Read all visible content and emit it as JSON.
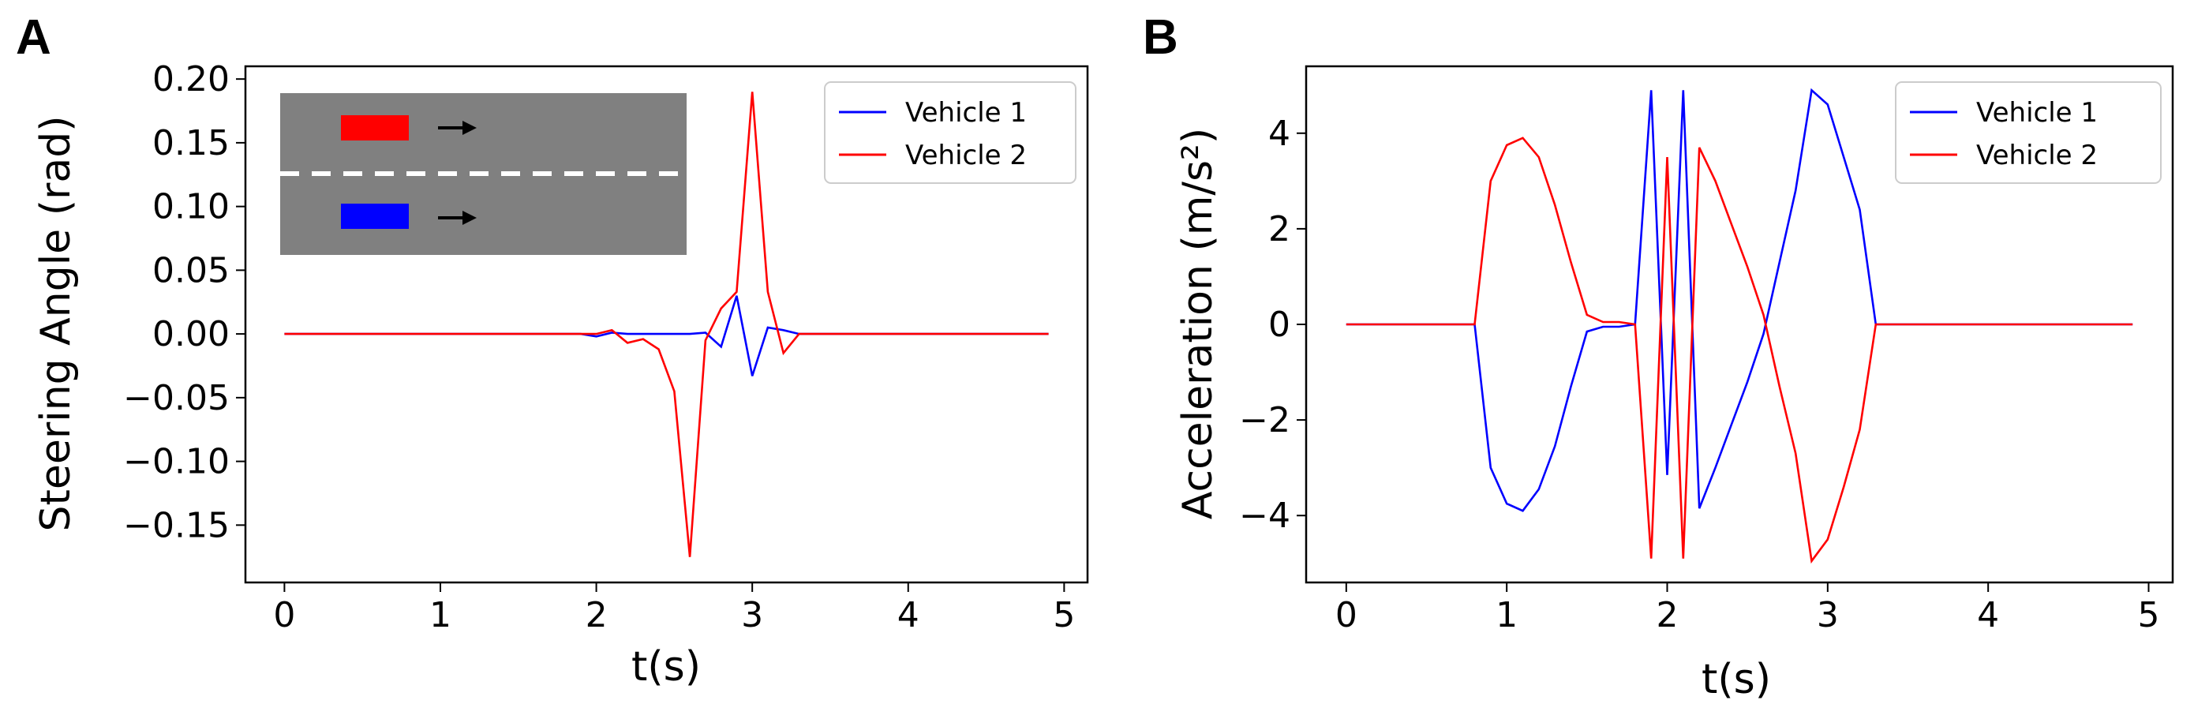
{
  "chart_data": [
    {
      "panel": "A",
      "type": "line",
      "xlabel": "t(s)",
      "ylabel": "Steering Angle (rad)",
      "xlim": [
        -0.25,
        5.15
      ],
      "ylim": [
        -0.195,
        0.21
      ],
      "xticks": [
        "0",
        "1",
        "2",
        "3",
        "4",
        "5"
      ],
      "yticks": [
        "0.20",
        "0.15",
        "0.10",
        "0.05",
        "0.00",
        "−0.05",
        "−0.10",
        "−0.15"
      ],
      "legend_position": "top-right",
      "grid": false,
      "inset": {
        "top_vehicle_color": "#ff0000",
        "bottom_vehicle_color": "#0000ff",
        "road_color": "#808080",
        "lane_marking": "dashed white",
        "arrow_direction": "right"
      },
      "series": [
        {
          "name": "Vehicle 1",
          "color": "#0000ff",
          "points": [
            [
              0,
              0
            ],
            [
              1.9,
              0
            ],
            [
              2.0,
              -0.002
            ],
            [
              2.1,
              0.001
            ],
            [
              2.2,
              0
            ],
            [
              2.6,
              0
            ],
            [
              2.7,
              0.001
            ],
            [
              2.8,
              -0.01
            ],
            [
              2.9,
              0.03
            ],
            [
              3.0,
              -0.033
            ],
            [
              3.1,
              0.005
            ],
            [
              3.2,
              0.003
            ],
            [
              3.3,
              0
            ],
            [
              4.9,
              0
            ]
          ]
        },
        {
          "name": "Vehicle 2",
          "color": "#ff0000",
          "points": [
            [
              0,
              0
            ],
            [
              1.9,
              0
            ],
            [
              2.0,
              0
            ],
            [
              2.1,
              0.003
            ],
            [
              2.2,
              -0.007
            ],
            [
              2.3,
              -0.004
            ],
            [
              2.4,
              -0.012
            ],
            [
              2.5,
              -0.045
            ],
            [
              2.6,
              -0.175
            ],
            [
              2.7,
              -0.005
            ],
            [
              2.8,
              0.02
            ],
            [
              2.9,
              0.033
            ],
            [
              3.0,
              0.19
            ],
            [
              3.1,
              0.033
            ],
            [
              3.2,
              -0.015
            ],
            [
              3.3,
              0
            ],
            [
              4.9,
              0
            ]
          ]
        }
      ]
    },
    {
      "panel": "B",
      "type": "line",
      "xlabel": "t(s)",
      "ylabel": "Acceleration (m/s²)",
      "xlim": [
        -0.25,
        5.15
      ],
      "ylim": [
        -5.4,
        5.4
      ],
      "xticks": [
        "0",
        "1",
        "2",
        "3",
        "4",
        "5"
      ],
      "yticks": [
        "4",
        "2",
        "0",
        "−2",
        "−4"
      ],
      "legend_position": "top-right",
      "grid": false,
      "series": [
        {
          "name": "Vehicle 1",
          "color": "#0000ff",
          "points": [
            [
              0,
              0
            ],
            [
              0.8,
              0
            ],
            [
              0.9,
              -3.0
            ],
            [
              1.0,
              -3.75
            ],
            [
              1.1,
              -3.9
            ],
            [
              1.2,
              -3.45
            ],
            [
              1.3,
              -2.55
            ],
            [
              1.4,
              -1.3
            ],
            [
              1.5,
              -0.15
            ],
            [
              1.6,
              -0.05
            ],
            [
              1.7,
              -0.05
            ],
            [
              1.8,
              0
            ],
            [
              1.9,
              4.9
            ],
            [
              2.0,
              -3.15
            ],
            [
              2.1,
              4.9
            ],
            [
              2.2,
              -3.85
            ],
            [
              2.3,
              -3.0
            ],
            [
              2.4,
              -2.1
            ],
            [
              2.5,
              -1.2
            ],
            [
              2.6,
              -0.2
            ],
            [
              2.7,
              1.3
            ],
            [
              2.8,
              2.8
            ],
            [
              2.9,
              4.9
            ],
            [
              3.0,
              4.6
            ],
            [
              3.1,
              3.5
            ],
            [
              3.2,
              2.4
            ],
            [
              3.3,
              0
            ],
            [
              4.9,
              0
            ]
          ]
        },
        {
          "name": "Vehicle 2",
          "color": "#ff0000",
          "points": [
            [
              0,
              0
            ],
            [
              0.8,
              0
            ],
            [
              0.9,
              3.0
            ],
            [
              1.0,
              3.75
            ],
            [
              1.1,
              3.9
            ],
            [
              1.2,
              3.5
            ],
            [
              1.3,
              2.5
            ],
            [
              1.4,
              1.3
            ],
            [
              1.5,
              0.2
            ],
            [
              1.6,
              0.05
            ],
            [
              1.7,
              0.05
            ],
            [
              1.8,
              0
            ],
            [
              1.9,
              -4.9
            ],
            [
              2.0,
              3.5
            ],
            [
              2.1,
              -4.9
            ],
            [
              2.2,
              3.7
            ],
            [
              2.3,
              3.0
            ],
            [
              2.4,
              2.1
            ],
            [
              2.5,
              1.2
            ],
            [
              2.6,
              0.2
            ],
            [
              2.7,
              -1.3
            ],
            [
              2.8,
              -2.7
            ],
            [
              2.9,
              -4.95
            ],
            [
              3.0,
              -4.5
            ],
            [
              3.1,
              -3.4
            ],
            [
              3.2,
              -2.2
            ],
            [
              3.3,
              0
            ],
            [
              4.9,
              0
            ]
          ]
        }
      ]
    }
  ]
}
